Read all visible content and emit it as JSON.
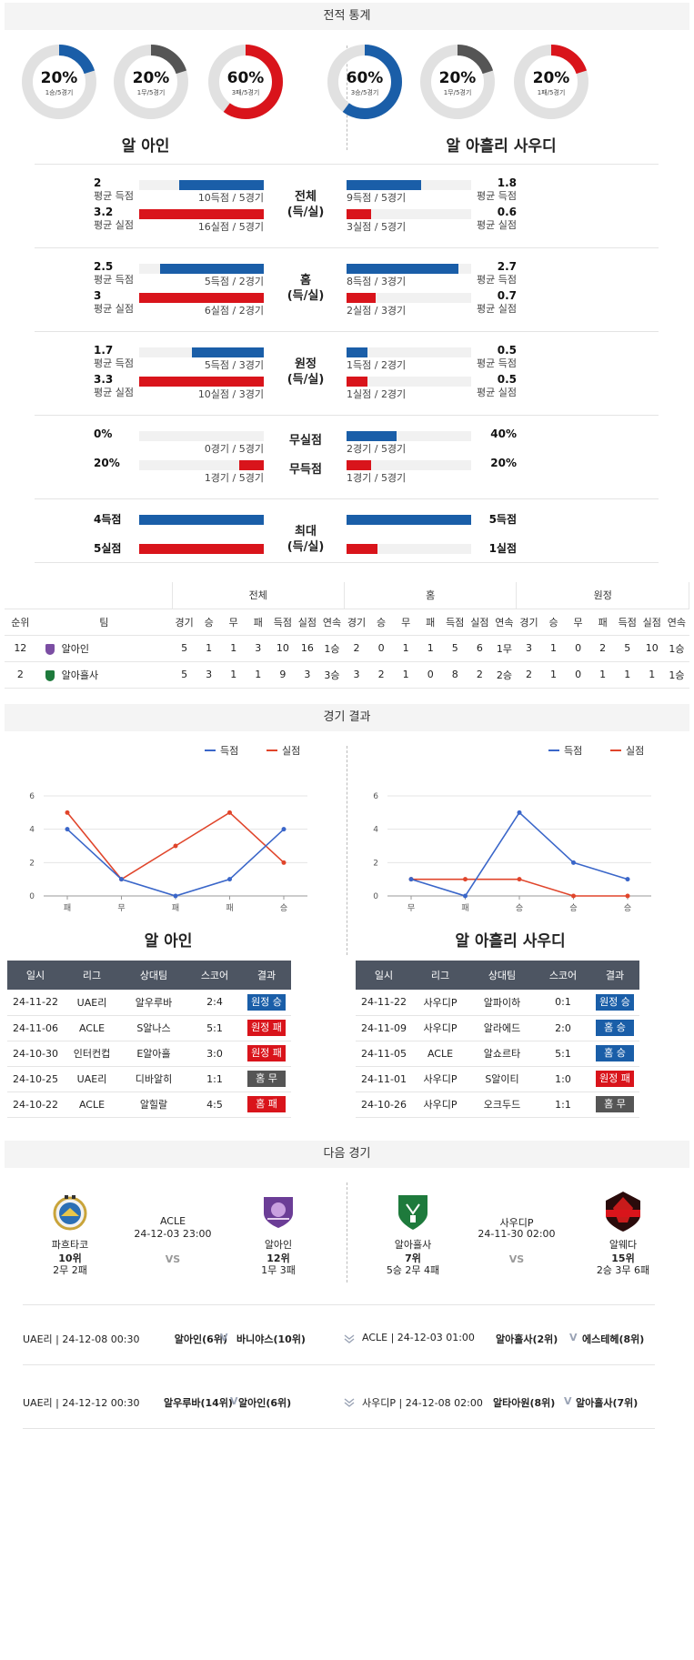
{
  "sections": {
    "h2h": "전적 통계",
    "results": "경기 결과",
    "next": "다음 경기"
  },
  "donuts": [
    {
      "pct": "20%",
      "sub": "1승/5경기",
      "fraction": 0.2,
      "color": "#1a5ea8"
    },
    {
      "pct": "20%",
      "sub": "1무/5경기",
      "fraction": 0.2,
      "color": "#555555"
    },
    {
      "pct": "60%",
      "sub": "3패/5경기",
      "fraction": 0.6,
      "color": "#d9141b"
    },
    {
      "pct": "60%",
      "sub": "3승/5경기",
      "fraction": 0.6,
      "color": "#1a5ea8"
    },
    {
      "pct": "20%",
      "sub": "1무/5경기",
      "fraction": 0.2,
      "color": "#555555"
    },
    {
      "pct": "20%",
      "sub": "1패/5경기",
      "fraction": 0.2,
      "color": "#d9141b"
    }
  ],
  "team_left": "알 아인",
  "team_right": "알 아흘리 사우디",
  "stats": [
    {
      "center": "전체\n(득/실)",
      "rows": [
        {
          "lval": "2",
          "llbl": "평균 득점",
          "lfill": 0.68,
          "lcap": "10득점 / 5경기",
          "rval": "1.8",
          "rlbl": "평균 득점",
          "rfill": 0.6,
          "rcap": "9득점 / 5경기",
          "color": "blue"
        },
        {
          "lval": "3.2",
          "llbl": "평균 실점",
          "lfill": 1.0,
          "lcap": "16실점 / 5경기",
          "rval": "0.6",
          "rlbl": "평균 실점",
          "rfill": 0.2,
          "rcap": "3실점 / 5경기",
          "color": "red"
        }
      ]
    },
    {
      "center": "홈\n(득/실)",
      "rows": [
        {
          "lval": "2.5",
          "llbl": "평균 득점",
          "lfill": 0.83,
          "lcap": "5득점 / 2경기",
          "rval": "2.7",
          "rlbl": "평균 득점",
          "rfill": 0.9,
          "rcap": "8득점 / 3경기",
          "color": "blue"
        },
        {
          "lval": "3",
          "llbl": "평균 실점",
          "lfill": 1.0,
          "lcap": "6실점 / 2경기",
          "rval": "0.7",
          "rlbl": "평균 실점",
          "rfill": 0.23,
          "rcap": "2실점 / 3경기",
          "color": "red"
        }
      ]
    },
    {
      "center": "원정\n(득/실)",
      "rows": [
        {
          "lval": "1.7",
          "llbl": "평균 득점",
          "lfill": 0.58,
          "lcap": "5득점 / 3경기",
          "rval": "0.5",
          "rlbl": "평균 득점",
          "rfill": 0.17,
          "rcap": "1득점 / 2경기",
          "color": "blue"
        },
        {
          "lval": "3.3",
          "llbl": "평균 실점",
          "lfill": 1.0,
          "lcap": "10실점 / 3경기",
          "rval": "0.5",
          "rlbl": "평균 실점",
          "rfill": 0.17,
          "rcap": "1실점 / 2경기",
          "color": "red"
        }
      ]
    },
    {
      "center": "무실점",
      "center2": "무득점",
      "rows": [
        {
          "lval": "0%",
          "llbl": "",
          "lfill": 0.0,
          "lcap": "0경기 / 5경기",
          "rval": "40%",
          "rlbl": "",
          "rfill": 0.4,
          "rcap": "2경기 / 5경기",
          "color": "blue"
        },
        {
          "lval": "20%",
          "llbl": "",
          "lfill": 0.2,
          "lcap": "1경기 / 5경기",
          "rval": "20%",
          "rlbl": "",
          "rfill": 0.2,
          "rcap": "1경기 / 5경기",
          "color": "red"
        }
      ]
    },
    {
      "center": "최대\n(득/실)",
      "rows": [
        {
          "lval": "4득점",
          "llbl": "",
          "lfill": 1.0,
          "lcap": "",
          "rval": "5득점",
          "rlbl": "",
          "rfill": 1.0,
          "rcap": "",
          "color": "blue"
        },
        {
          "lval": "5실점",
          "llbl": "",
          "lfill": 1.0,
          "lcap": "",
          "rval": "1실점",
          "rlbl": "",
          "rfill": 0.25,
          "rcap": "",
          "color": "red"
        }
      ]
    }
  ],
  "standings": {
    "groups": [
      "전체",
      "홈",
      "원정"
    ],
    "cols": [
      "순위",
      "팀",
      "경기",
      "승",
      "무",
      "패",
      "득점",
      "실점",
      "연속",
      "경기",
      "승",
      "무",
      "패",
      "득점",
      "실점",
      "연속",
      "경기",
      "승",
      "무",
      "패",
      "득점",
      "실점",
      "연속"
    ],
    "rows": [
      {
        "rank": "12",
        "team": "알아인",
        "crest": "#7b4ea3",
        "cells": [
          "5",
          "1",
          "1",
          "3",
          "10",
          "16",
          "1승",
          "2",
          "0",
          "1",
          "1",
          "5",
          "6",
          "1무",
          "3",
          "1",
          "0",
          "2",
          "5",
          "10",
          "1승"
        ]
      },
      {
        "rank": "2",
        "team": "알아흘사",
        "crest": "#1e7a3c",
        "cells": [
          "5",
          "3",
          "1",
          "1",
          "9",
          "3",
          "3승",
          "3",
          "2",
          "1",
          "0",
          "8",
          "2",
          "2승",
          "2",
          "1",
          "0",
          "1",
          "1",
          "1",
          "1승"
        ]
      }
    ]
  },
  "chart_data": [
    {
      "type": "line",
      "categories": [
        "패",
        "무",
        "패",
        "패",
        "승"
      ],
      "ylim": [
        0,
        6
      ],
      "yticks": [
        "6",
        "4",
        "2",
        "0"
      ],
      "series": [
        {
          "name": "득점",
          "color": "#3a66c9",
          "values": [
            4,
            1,
            0,
            1,
            4
          ]
        },
        {
          "name": "실점",
          "color": "#e0452b",
          "values": [
            5,
            1,
            3,
            5,
            2
          ]
        }
      ]
    },
    {
      "type": "line",
      "categories": [
        "무",
        "패",
        "승",
        "승",
        "승"
      ],
      "ylim": [
        0,
        6
      ],
      "yticks": [
        "6",
        "4",
        "2",
        "0"
      ],
      "series": [
        {
          "name": "득점",
          "color": "#3a66c9",
          "values": [
            1,
            0,
            5,
            2,
            1
          ]
        },
        {
          "name": "실점",
          "color": "#e0452b",
          "values": [
            1,
            1,
            1,
            0,
            0
          ]
        }
      ]
    }
  ],
  "results_left": {
    "title": "알 아인",
    "headers": [
      "일시",
      "리그",
      "상대팀",
      "스코어",
      "결과"
    ],
    "rows": [
      [
        "24-11-22",
        "UAE리",
        "알우루바",
        "2:4",
        "원정 승",
        "b-blue"
      ],
      [
        "24-11-06",
        "ACLE",
        "S알나스",
        "5:1",
        "원정 패",
        "b-red"
      ],
      [
        "24-10-30",
        "인터컨컵",
        "E알아흘",
        "3:0",
        "원정 패",
        "b-red"
      ],
      [
        "24-10-25",
        "UAE리",
        "디바알히",
        "1:1",
        "홈 무",
        "b-gray"
      ],
      [
        "24-10-22",
        "ACLE",
        "알힐랄",
        "4:5",
        "홈 패",
        "b-red"
      ]
    ]
  },
  "results_right": {
    "title": "알 아흘리 사우디",
    "headers": [
      "일시",
      "리그",
      "상대팀",
      "스코어",
      "결과"
    ],
    "rows": [
      [
        "24-11-22",
        "사우디P",
        "알파이하",
        "0:1",
        "원정 승",
        "b-blue"
      ],
      [
        "24-11-09",
        "사우디P",
        "알라에드",
        "2:0",
        "홈 승",
        "b-blue"
      ],
      [
        "24-11-05",
        "ACLE",
        "알쇼르타",
        "5:1",
        "홈 승",
        "b-blue"
      ],
      [
        "24-11-01",
        "사우디P",
        "S알이티",
        "1:0",
        "원정 패",
        "b-red"
      ],
      [
        "24-10-26",
        "사우디P",
        "오크두드",
        "1:1",
        "홈 무",
        "b-gray"
      ]
    ]
  },
  "fixtures": [
    {
      "home": "파흐타코",
      "home_rank": "10위",
      "home_rec": "2무 2패",
      "league": "ACLE",
      "date": "24-12-03 23:00",
      "vs": "VS",
      "away": "알아인",
      "away_rank": "12위",
      "away_rec": "1무 3패"
    },
    {
      "home": "알아흘사",
      "home_rank": "7위",
      "home_rec": "5승 2무 4패",
      "league": "사우디P",
      "date": "24-11-30 02:00",
      "vs": "VS",
      "away": "알웨다",
      "away_rank": "15위",
      "away_rec": "2승 3무 6패"
    }
  ],
  "next_lines": [
    {
      "left_info": "UAE리 | 24-12-08 00:30",
      "left_home": "알아인(6위)",
      "left_away": "바니야스(10위)",
      "right_info": "ACLE | 24-12-03 01:00",
      "right_home": "알아흘사(2위)",
      "right_away": "에스테헤(8위)"
    },
    {
      "left_info": "UAE리 | 24-12-12 00:30",
      "left_home": "알우루바(14위)",
      "left_away": "알아인(6위)",
      "right_info": "사우디P | 24-12-08 02:00",
      "right_home": "알타아원(8위)",
      "right_away": "알아흘사(7위)"
    }
  ],
  "v_mark": "V"
}
